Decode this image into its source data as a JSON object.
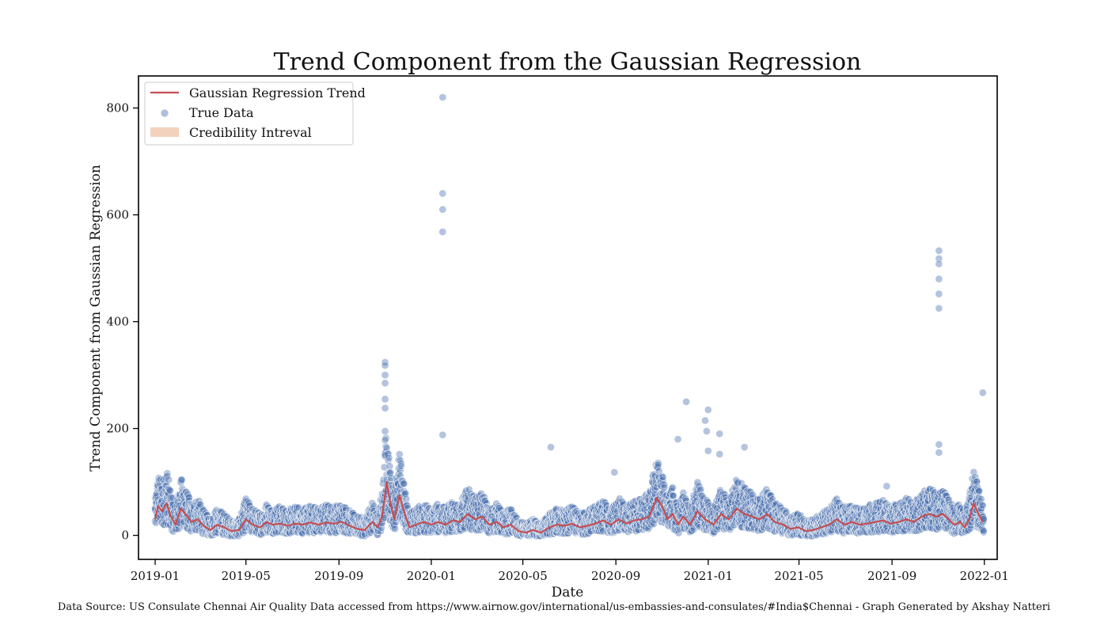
{
  "chart_data": {
    "type": "scatter",
    "title": "Trend Component from the Gaussian Regression",
    "xlabel": "Date",
    "ylabel": "Trend Component from Gaussian Regression",
    "x_range": [
      "2018-12-10",
      "2022-01-18"
    ],
    "ylim": [
      -45,
      860
    ],
    "x_ticks": [
      {
        "date": "2019-01-01",
        "label": "2019-01"
      },
      {
        "date": "2019-05-01",
        "label": "2019-05"
      },
      {
        "date": "2019-09-01",
        "label": "2019-09"
      },
      {
        "date": "2020-01-01",
        "label": "2020-01"
      },
      {
        "date": "2020-05-01",
        "label": "2020-05"
      },
      {
        "date": "2020-09-01",
        "label": "2020-09"
      },
      {
        "date": "2021-01-01",
        "label": "2021-01"
      },
      {
        "date": "2021-05-01",
        "label": "2021-05"
      },
      {
        "date": "2021-09-01",
        "label": "2021-09"
      },
      {
        "date": "2022-01-01",
        "label": "2022-01"
      }
    ],
    "y_ticks": [
      0,
      200,
      400,
      600,
      800
    ],
    "grid": false,
    "legend_position": "top-left",
    "legend": [
      {
        "label": "Gaussian Regression Trend",
        "kind": "line",
        "color": "#c44e52"
      },
      {
        "label": "True Data",
        "kind": "marker",
        "color": "#4c72b0"
      },
      {
        "label": "Credibility Intreval",
        "kind": "band",
        "color": "#f3d2bd"
      }
    ],
    "series": [
      {
        "name": "Gaussian Regression Trend",
        "kind": "line",
        "color": "#c44e52",
        "points": [
          [
            "2019-01-01",
            30
          ],
          [
            "2019-01-05",
            55
          ],
          [
            "2019-01-10",
            45
          ],
          [
            "2019-01-16",
            60
          ],
          [
            "2019-01-22",
            35
          ],
          [
            "2019-01-28",
            20
          ],
          [
            "2019-02-04",
            50
          ],
          [
            "2019-02-10",
            40
          ],
          [
            "2019-02-18",
            25
          ],
          [
            "2019-02-26",
            30
          ],
          [
            "2019-03-06",
            18
          ],
          [
            "2019-03-15",
            10
          ],
          [
            "2019-03-24",
            20
          ],
          [
            "2019-04-02",
            15
          ],
          [
            "2019-04-12",
            8
          ],
          [
            "2019-04-22",
            10
          ],
          [
            "2019-05-01",
            30
          ],
          [
            "2019-05-10",
            20
          ],
          [
            "2019-05-20",
            15
          ],
          [
            "2019-05-28",
            25
          ],
          [
            "2019-06-05",
            20
          ],
          [
            "2019-06-15",
            22
          ],
          [
            "2019-06-25",
            18
          ],
          [
            "2019-07-05",
            22
          ],
          [
            "2019-07-15",
            20
          ],
          [
            "2019-07-25",
            24
          ],
          [
            "2019-08-05",
            20
          ],
          [
            "2019-08-15",
            24
          ],
          [
            "2019-08-25",
            22
          ],
          [
            "2019-09-05",
            25
          ],
          [
            "2019-09-15",
            18
          ],
          [
            "2019-09-25",
            12
          ],
          [
            "2019-10-05",
            10
          ],
          [
            "2019-10-15",
            25
          ],
          [
            "2019-10-22",
            15
          ],
          [
            "2019-10-28",
            35
          ],
          [
            "2019-11-03",
            100
          ],
          [
            "2019-11-08",
            60
          ],
          [
            "2019-11-13",
            30
          ],
          [
            "2019-11-20",
            75
          ],
          [
            "2019-11-27",
            40
          ],
          [
            "2019-12-03",
            15
          ],
          [
            "2019-12-12",
            20
          ],
          [
            "2019-12-22",
            25
          ],
          [
            "2020-01-01",
            20
          ],
          [
            "2020-01-10",
            25
          ],
          [
            "2020-01-20",
            20
          ],
          [
            "2020-01-30",
            28
          ],
          [
            "2020-02-08",
            25
          ],
          [
            "2020-02-18",
            40
          ],
          [
            "2020-02-28",
            30
          ],
          [
            "2020-03-08",
            35
          ],
          [
            "2020-03-18",
            20
          ],
          [
            "2020-03-28",
            25
          ],
          [
            "2020-04-05",
            15
          ],
          [
            "2020-04-15",
            20
          ],
          [
            "2020-04-25",
            8
          ],
          [
            "2020-05-05",
            5
          ],
          [
            "2020-05-15",
            10
          ],
          [
            "2020-05-25",
            5
          ],
          [
            "2020-06-05",
            15
          ],
          [
            "2020-06-15",
            20
          ],
          [
            "2020-06-25",
            18
          ],
          [
            "2020-07-05",
            22
          ],
          [
            "2020-07-15",
            15
          ],
          [
            "2020-07-25",
            18
          ],
          [
            "2020-08-05",
            22
          ],
          [
            "2020-08-15",
            28
          ],
          [
            "2020-08-25",
            20
          ],
          [
            "2020-09-05",
            30
          ],
          [
            "2020-09-15",
            22
          ],
          [
            "2020-09-25",
            28
          ],
          [
            "2020-10-05",
            30
          ],
          [
            "2020-10-15",
            35
          ],
          [
            "2020-10-25",
            70
          ],
          [
            "2020-11-01",
            55
          ],
          [
            "2020-11-08",
            30
          ],
          [
            "2020-11-15",
            40
          ],
          [
            "2020-11-22",
            20
          ],
          [
            "2020-11-29",
            35
          ],
          [
            "2020-12-08",
            20
          ],
          [
            "2020-12-18",
            45
          ],
          [
            "2020-12-28",
            30
          ],
          [
            "2021-01-08",
            20
          ],
          [
            "2021-01-18",
            40
          ],
          [
            "2021-01-28",
            30
          ],
          [
            "2021-02-08",
            50
          ],
          [
            "2021-02-18",
            40
          ],
          [
            "2021-02-28",
            35
          ],
          [
            "2021-03-10",
            30
          ],
          [
            "2021-03-20",
            40
          ],
          [
            "2021-03-30",
            25
          ],
          [
            "2021-04-10",
            20
          ],
          [
            "2021-04-20",
            12
          ],
          [
            "2021-04-30",
            15
          ],
          [
            "2021-05-10",
            8
          ],
          [
            "2021-05-20",
            10
          ],
          [
            "2021-05-30",
            15
          ],
          [
            "2021-06-10",
            20
          ],
          [
            "2021-06-20",
            30
          ],
          [
            "2021-06-30",
            20
          ],
          [
            "2021-07-10",
            25
          ],
          [
            "2021-07-20",
            20
          ],
          [
            "2021-07-30",
            22
          ],
          [
            "2021-08-10",
            25
          ],
          [
            "2021-08-20",
            28
          ],
          [
            "2021-08-30",
            22
          ],
          [
            "2021-09-10",
            25
          ],
          [
            "2021-09-20",
            30
          ],
          [
            "2021-09-30",
            25
          ],
          [
            "2021-10-10",
            35
          ],
          [
            "2021-10-20",
            40
          ],
          [
            "2021-10-30",
            35
          ],
          [
            "2021-11-07",
            40
          ],
          [
            "2021-11-15",
            30
          ],
          [
            "2021-11-22",
            20
          ],
          [
            "2021-11-30",
            25
          ],
          [
            "2021-12-06",
            15
          ],
          [
            "2021-12-12",
            30
          ],
          [
            "2021-12-18",
            60
          ],
          [
            "2021-12-24",
            40
          ],
          [
            "2021-12-30",
            25
          ]
        ]
      },
      {
        "name": "True Data",
        "kind": "scatter",
        "color": "#4c72b0",
        "outliers": [
          [
            "2020-01-16",
            820
          ],
          [
            "2020-01-16",
            640
          ],
          [
            "2020-01-16",
            610
          ],
          [
            "2020-01-16",
            568
          ],
          [
            "2020-01-16",
            188
          ],
          [
            "2019-11-01",
            324
          ],
          [
            "2019-11-01",
            318
          ],
          [
            "2019-11-01",
            300
          ],
          [
            "2019-11-01",
            285
          ],
          [
            "2019-11-01",
            255
          ],
          [
            "2019-11-01",
            238
          ],
          [
            "2019-11-01",
            195
          ],
          [
            "2019-11-01",
            178
          ],
          [
            "2019-11-01",
            150
          ],
          [
            "2021-11-02",
            533
          ],
          [
            "2021-11-02",
            518
          ],
          [
            "2021-11-02",
            508
          ],
          [
            "2021-11-02",
            480
          ],
          [
            "2021-11-02",
            452
          ],
          [
            "2021-11-02",
            425
          ],
          [
            "2021-11-02",
            170
          ],
          [
            "2021-11-02",
            155
          ],
          [
            "2021-12-30",
            267
          ],
          [
            "2020-12-03",
            250
          ],
          [
            "2021-01-01",
            235
          ],
          [
            "2020-12-28",
            215
          ],
          [
            "2020-12-30",
            195
          ],
          [
            "2021-01-16",
            190
          ],
          [
            "2021-02-18",
            165
          ],
          [
            "2020-06-07",
            165
          ],
          [
            "2020-11-22",
            180
          ],
          [
            "2021-01-01",
            158
          ],
          [
            "2021-01-16",
            152
          ],
          [
            "2020-08-30",
            118
          ],
          [
            "2021-08-25",
            92
          ]
        ]
      },
      {
        "name": "Credibility Intreval",
        "kind": "band",
        "color": "#f3d2bd"
      }
    ]
  },
  "footer": {
    "source": "Data Source: US Consulate Chennai Air Quality Data accessed from https://www.airnow.gov/international/us-embassies-and-consulates/#India$Chennai  - Graph Generated by Akshay Natteri"
  }
}
